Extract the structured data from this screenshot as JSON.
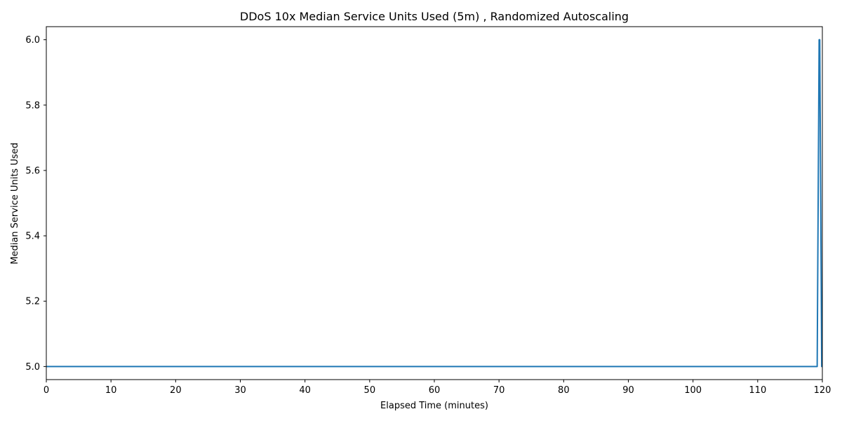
{
  "chart_data": {
    "type": "line",
    "title": "DDoS 10x Median Service Units Used (5m) , Randomized Autoscaling",
    "xlabel": "Elapsed Time (minutes)",
    "ylabel": "Median Service Units Used",
    "xlim": [
      0,
      120
    ],
    "ylim": [
      4.96,
      6.04
    ],
    "xticks": [
      0,
      10,
      20,
      30,
      40,
      50,
      60,
      70,
      80,
      90,
      100,
      110,
      120
    ],
    "xtick_labels": [
      "0",
      "10",
      "20",
      "30",
      "40",
      "50",
      "60",
      "70",
      "80",
      "90",
      "100",
      "110",
      "120"
    ],
    "yticks": [
      5.0,
      5.2,
      5.4,
      5.6,
      5.8,
      6.0
    ],
    "ytick_labels": [
      "5.0",
      "5.2",
      "5.4",
      "5.6",
      "5.8",
      "6.0"
    ],
    "grid": false,
    "legend": false,
    "line_color": "#1f77b4",
    "series": [
      {
        "x": [
          0,
          119.2,
          119.5,
          119.6,
          119.9,
          120
        ],
        "y": [
          5.0,
          5.0,
          6.0,
          6.0,
          5.0,
          5.0
        ]
      }
    ]
  }
}
